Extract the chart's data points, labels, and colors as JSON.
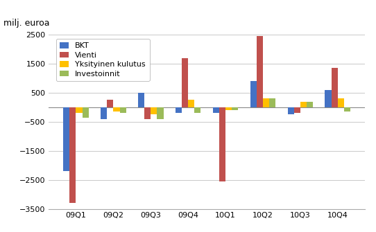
{
  "categories": [
    "09Q1",
    "09Q2",
    "09Q3",
    "09Q4",
    "10Q1",
    "10Q2",
    "10Q3",
    "10Q4"
  ],
  "series": {
    "BKT": [
      -2200,
      -400,
      500,
      -200,
      -200,
      900,
      -250,
      600
    ],
    "Vienti": [
      -3300,
      250,
      -400,
      1700,
      -2550,
      2450,
      -200,
      1350
    ],
    "Yksityinen kulutus": [
      -200,
      -150,
      -250,
      250,
      -100,
      300,
      200,
      300
    ],
    "Investoinnit": [
      -350,
      -200,
      -400,
      -200,
      -100,
      300,
      200,
      -150
    ]
  },
  "colors": {
    "BKT": "#4472C4",
    "Vienti": "#C0504D",
    "Yksityinen kulutus": "#FFC000",
    "Investoinnit": "#9BBB59"
  },
  "ylabel": "milj. euroa",
  "ylim": [
    -3500,
    2500
  ],
  "yticks": [
    -3500,
    -2500,
    -1500,
    -500,
    500,
    1500,
    2500
  ],
  "background_color": "#FFFFFF",
  "plot_background": "#FFFFFF",
  "bar_width": 0.17,
  "legend_fontsize": 8,
  "tick_fontsize": 8,
  "ylabel_fontsize": 9
}
